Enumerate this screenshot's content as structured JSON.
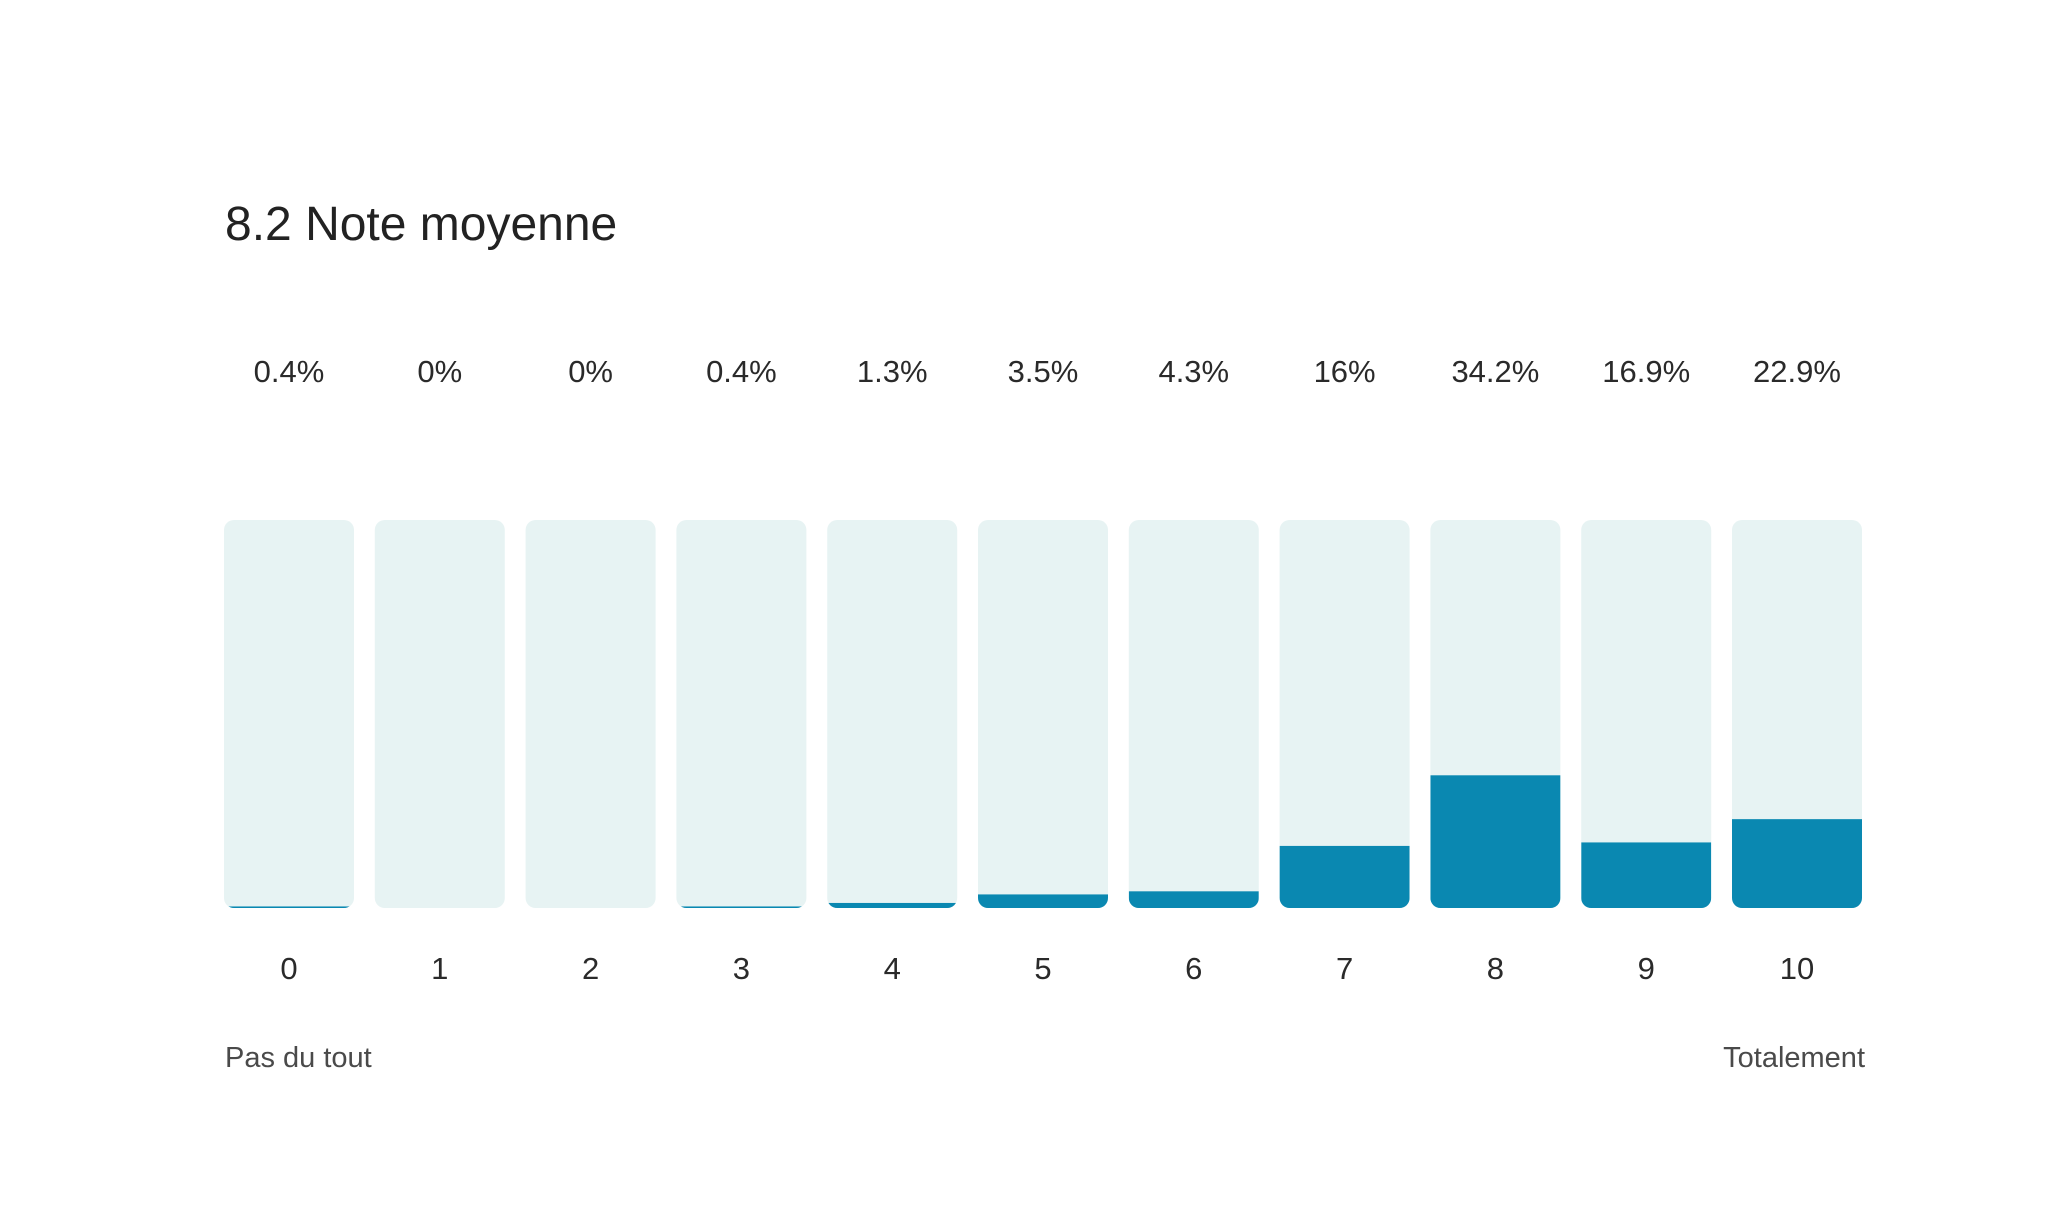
{
  "title": "8.2 Note moyenne",
  "chart_data": {
    "type": "bar",
    "categories": [
      "0",
      "1",
      "2",
      "3",
      "4",
      "5",
      "6",
      "7",
      "8",
      "9",
      "10"
    ],
    "values": [
      0.4,
      0,
      0,
      0.4,
      1.3,
      3.5,
      4.3,
      16,
      34.2,
      16.9,
      22.9
    ],
    "value_labels": [
      "0.4%",
      "0%",
      "0%",
      "0.4%",
      "1.3%",
      "3.5%",
      "4.3%",
      "16%",
      "34.2%",
      "16.9%",
      "22.9%"
    ],
    "ylim": [
      0,
      100
    ],
    "scale_min_label": "Pas du tout",
    "scale_max_label": "Totalement",
    "grid": false,
    "legend": "none",
    "colors": {
      "bar": "#0a88b1",
      "track": "#e7f3f3"
    }
  }
}
